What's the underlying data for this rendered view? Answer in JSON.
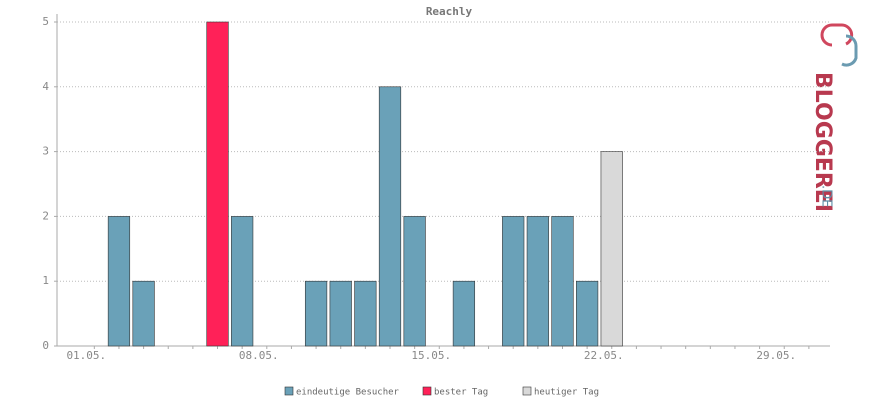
{
  "chart_data": {
    "type": "bar",
    "title": "Reachly",
    "categories": [
      "01.05.",
      null,
      null,
      null,
      null,
      null,
      null,
      "08.05.",
      null,
      null,
      null,
      null,
      null,
      null,
      "15.05.",
      null,
      null,
      null,
      null,
      null,
      null,
      "22.05.",
      null,
      null,
      null,
      null,
      null,
      null,
      "29.05.",
      null
    ],
    "series": [
      {
        "name": "eindeutige Besucher",
        "color": "#6aa1b8",
        "values": [
          0,
          2,
          1,
          0,
          0,
          null,
          2,
          0,
          0,
          1,
          1,
          1,
          4,
          2,
          0,
          1,
          0,
          2,
          2,
          2,
          1,
          null,
          0,
          0,
          0,
          0,
          0,
          0,
          0,
          0
        ]
      },
      {
        "name": "bester Tag",
        "color": "#ff2158",
        "values": [
          null,
          null,
          null,
          null,
          null,
          5,
          null,
          null,
          null,
          null,
          null,
          null,
          null,
          null,
          null,
          null,
          null,
          null,
          null,
          null,
          null,
          null,
          null,
          null,
          null,
          null,
          null,
          null,
          null,
          null
        ]
      },
      {
        "name": "heutiger Tag",
        "color": "#d9d9d9",
        "values": [
          null,
          null,
          null,
          null,
          null,
          null,
          null,
          null,
          null,
          null,
          null,
          null,
          null,
          null,
          null,
          null,
          null,
          null,
          null,
          null,
          null,
          3,
          null,
          null,
          null,
          null,
          null,
          null,
          null,
          null
        ]
      }
    ],
    "ylim": [
      0,
      5
    ],
    "yticks": [
      0,
      1,
      2,
      3,
      4,
      5
    ],
    "grid": true,
    "logo": {
      "main": "BLOGGEREI",
      "suffix": ".DE"
    }
  }
}
